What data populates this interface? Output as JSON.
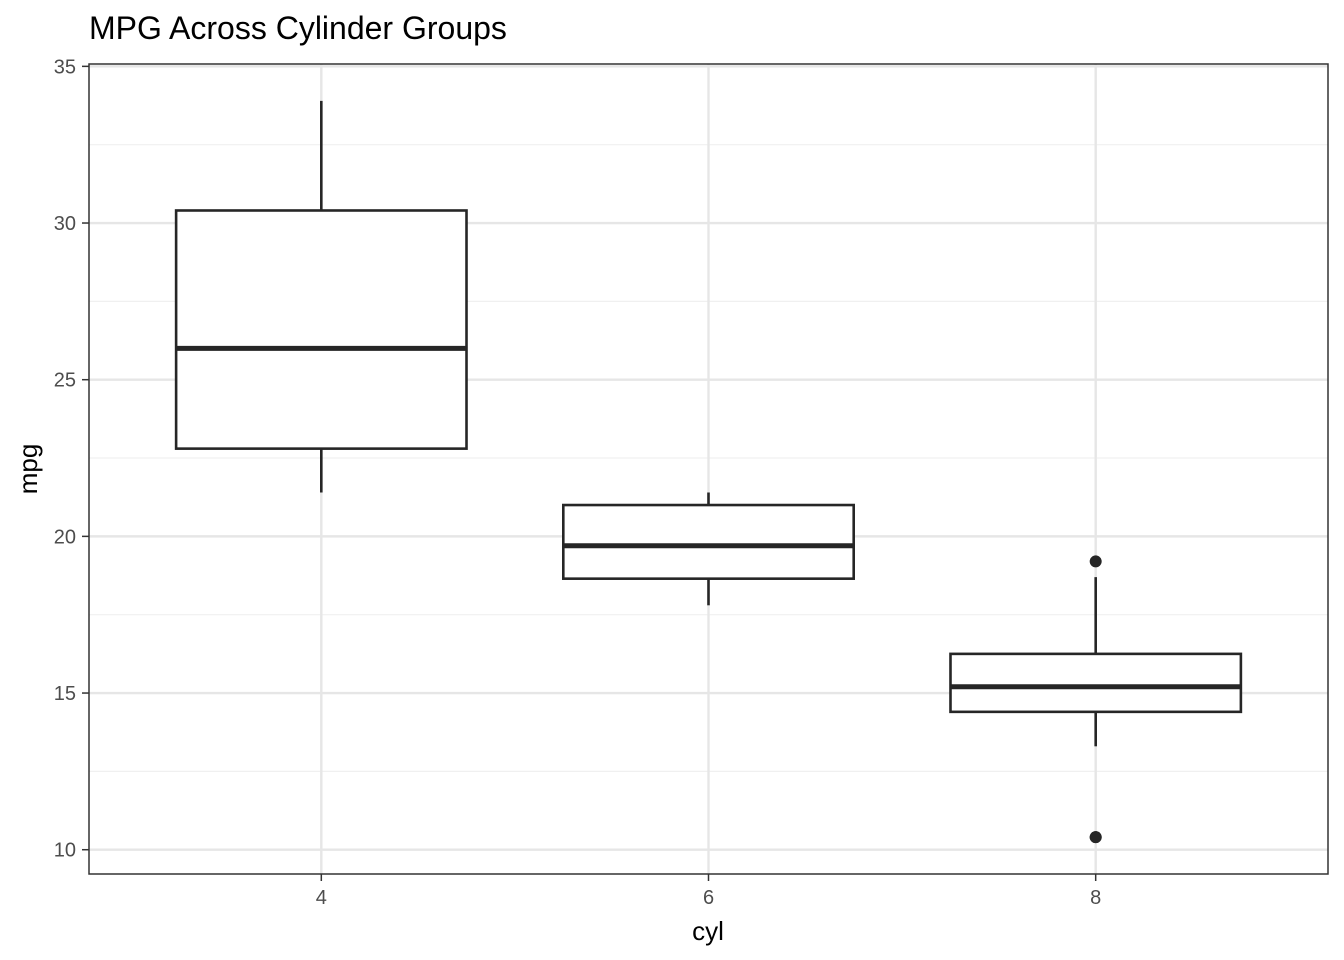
{
  "chart_data": {
    "type": "box",
    "title": "MPG Across Cylinder Groups",
    "xlabel": "cyl",
    "ylabel": "mpg",
    "categories": [
      "4",
      "6",
      "8"
    ],
    "ylim": [
      9.225,
      35.075
    ],
    "y_ticks": [
      10,
      15,
      20,
      25,
      30,
      35
    ],
    "y_minor_ticks": [
      12.5,
      17.5,
      22.5,
      27.5,
      32.5
    ],
    "grid": true,
    "legend": "none",
    "boxes": [
      {
        "category": "4",
        "whisker_low": 21.4,
        "q1": 22.8,
        "median": 26.0,
        "q3": 30.4,
        "whisker_high": 33.9,
        "outliers": []
      },
      {
        "category": "6",
        "whisker_low": 17.8,
        "q1": 18.65,
        "median": 19.7,
        "q3": 21.0,
        "whisker_high": 21.4,
        "outliers": []
      },
      {
        "category": "8",
        "whisker_low": 13.3,
        "q1": 14.4,
        "median": 15.2,
        "q3": 16.25,
        "whisker_high": 18.7,
        "outliers": [
          10.4,
          10.4,
          19.2
        ]
      }
    ],
    "colors": {
      "box_stroke": "#262626",
      "box_fill": "#ffffff",
      "grid_major": "#e6e6e6",
      "grid_minor": "#f0f0f0",
      "panel_border": "#333333",
      "tick_text": "#4d4d4d",
      "axis_title": "#000000"
    }
  }
}
